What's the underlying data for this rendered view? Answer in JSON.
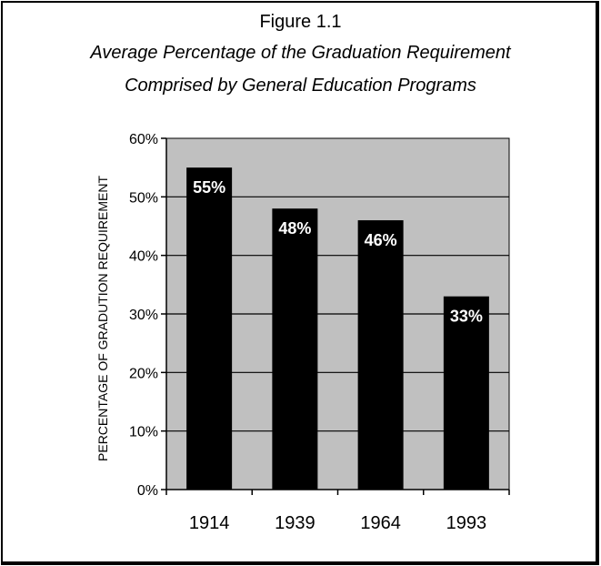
{
  "figure_label": "Figure 1.1",
  "chart_data": {
    "type": "bar",
    "title": "Average Percentage of the Graduation Requirement",
    "subtitle": "Comprised by General Education Programs",
    "xlabel": "",
    "ylabel": "PERCENTAGE OF GRADUTION REQUIREMENT",
    "categories": [
      "1914",
      "1939",
      "1964",
      "1993"
    ],
    "values": [
      55,
      48,
      46,
      33
    ],
    "value_labels": [
      "55%",
      "48%",
      "46%",
      "33%"
    ],
    "ylim": [
      0,
      60
    ],
    "yticks": [
      0,
      10,
      20,
      30,
      40,
      50,
      60
    ],
    "ytick_labels": [
      "0%",
      "10%",
      "20%",
      "30%",
      "40%",
      "50%",
      "60%"
    ],
    "grid": true,
    "legend": "none",
    "colors": {
      "bar": "#000000",
      "plot_background": "#c0c0c0",
      "bar_label": "#ffffff"
    }
  }
}
